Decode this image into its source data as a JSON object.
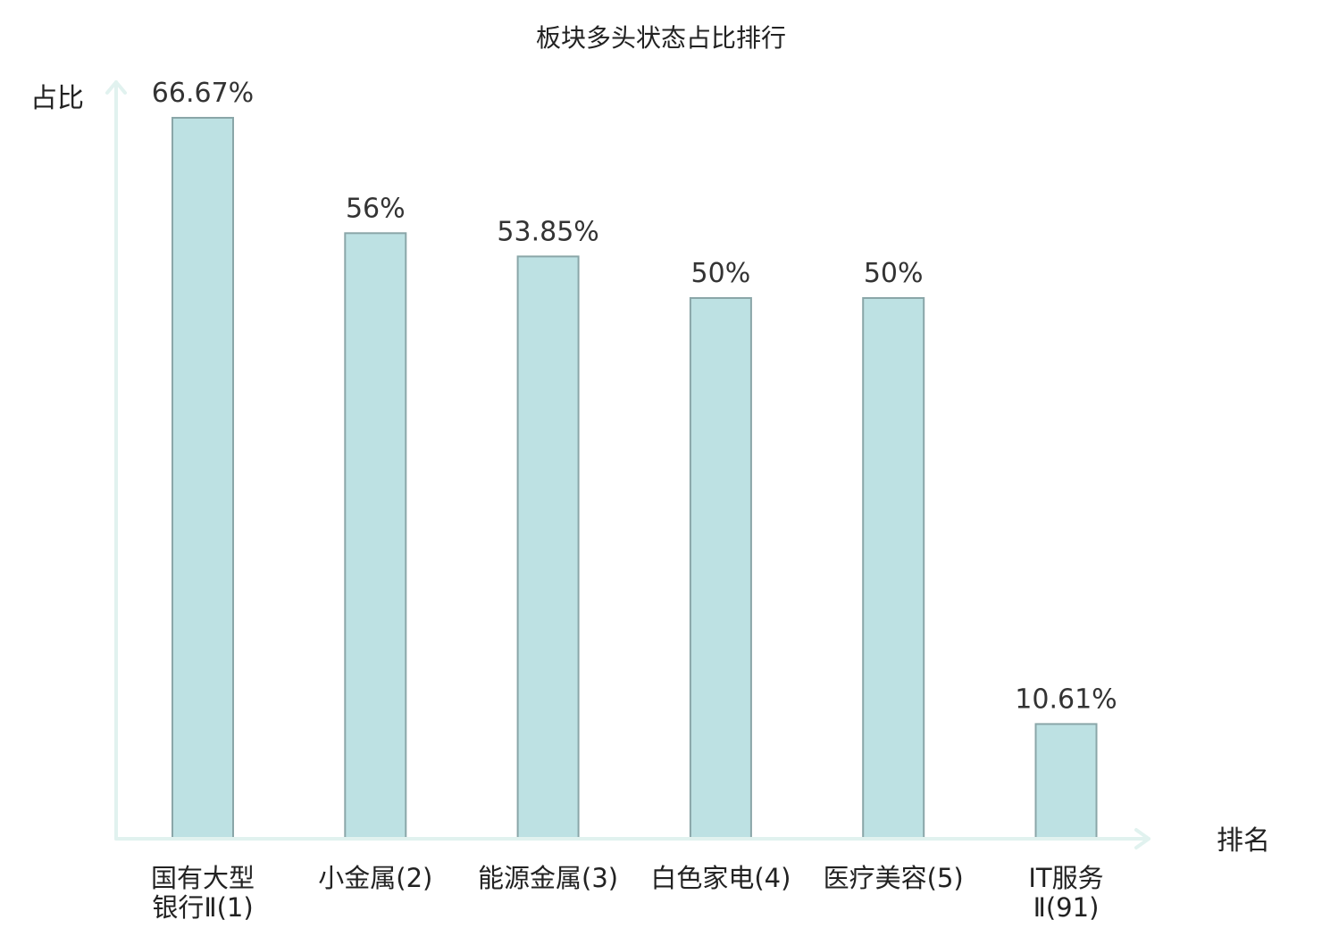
{
  "chart_data": {
    "type": "bar",
    "title": "板块多头状态占比排行",
    "ylabel": "占比",
    "xlabel": "排名",
    "ylim": [
      0,
      70
    ],
    "grid": false,
    "categories": [
      [
        "国有大型",
        "银行Ⅱ(1)"
      ],
      [
        "小金属(2)"
      ],
      [
        "能源金属(3)"
      ],
      [
        "白色家电(4)"
      ],
      [
        "医疗美容(5)"
      ],
      [
        "IT服务",
        "Ⅱ(91)"
      ]
    ],
    "values": [
      66.67,
      56,
      53.85,
      50,
      50,
      10.61
    ],
    "value_labels": [
      "66.67%",
      "56%",
      "53.85%",
      "50%",
      "50%",
      "10.61%"
    ],
    "highlight_index": 5,
    "colors": {
      "bar_fill": "#bde1e3",
      "bar_stroke": "#8aa6a8",
      "axis": "#e1f2ef",
      "text": "#222222",
      "highlight_text": "#e02020"
    }
  }
}
